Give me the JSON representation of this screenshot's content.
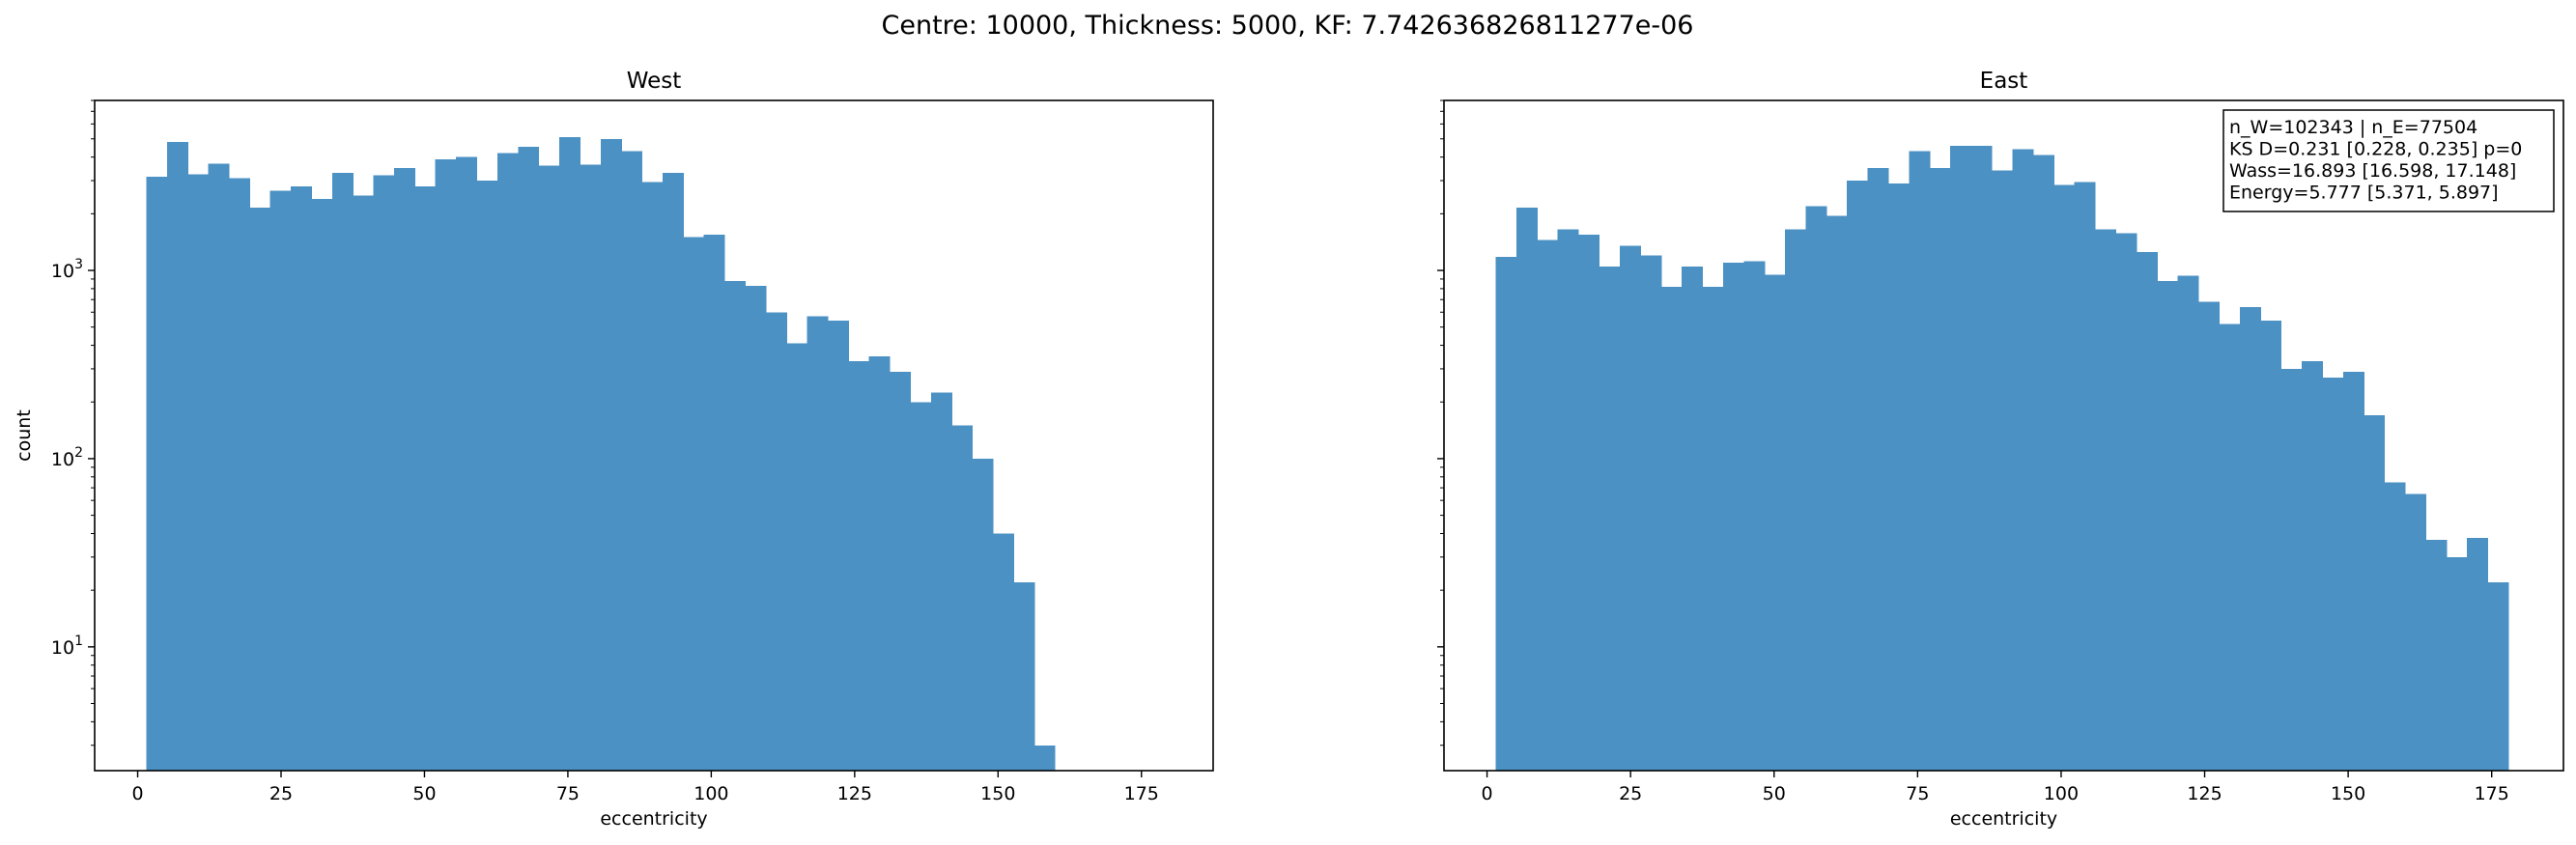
{
  "suptitle": "Centre: 10000, Thickness: 5000, KF: 7.742636826811277e-06",
  "chart_data": [
    {
      "type": "bar",
      "title": "West",
      "xlabel": "eccentricity",
      "ylabel": "count",
      "yscale": "log",
      "xlim": [
        -7.5,
        187.5
      ],
      "ylim": [
        2.2,
        8000
      ],
      "xticks": [
        0,
        25,
        50,
        75,
        100,
        125,
        150,
        175
      ],
      "yticks": [
        {
          "value": 10,
          "base": "10",
          "exp": "1"
        },
        {
          "value": 100,
          "base": "10",
          "exp": "2"
        },
        {
          "value": 1000,
          "base": "10",
          "exp": "3"
        }
      ],
      "bin_start": 1.5,
      "bin_width": 3.6,
      "color": "#4c91c3",
      "values": [
        3150,
        4800,
        3250,
        3700,
        3100,
        2150,
        2650,
        2800,
        2400,
        3300,
        2500,
        3200,
        3500,
        2800,
        3900,
        4000,
        3000,
        4200,
        4550,
        3600,
        5100,
        3650,
        5000,
        4300,
        2950,
        3300,
        1500,
        1550,
        880,
        830,
        600,
        410,
        570,
        540,
        330,
        350,
        290,
        200,
        225,
        150,
        100,
        40,
        22,
        3
      ]
    },
    {
      "type": "bar",
      "title": "East",
      "xlabel": "eccentricity",
      "ylabel": "",
      "yscale": "log",
      "xlim": [
        -7.5,
        187.5
      ],
      "ylim": [
        2.2,
        8000
      ],
      "xticks": [
        0,
        25,
        50,
        75,
        100,
        125,
        150,
        175
      ],
      "bin_start": 1.5,
      "bin_width": 3.6,
      "color": "#4c91c3",
      "values": [
        1180,
        2150,
        1450,
        1650,
        1550,
        1050,
        1350,
        1200,
        820,
        1050,
        820,
        1100,
        1120,
        950,
        1650,
        2200,
        1950,
        3000,
        3500,
        2900,
        4300,
        3500,
        4600,
        4600,
        3400,
        4400,
        4100,
        2850,
        2950,
        1650,
        1580,
        1250,
        880,
        940,
        680,
        520,
        640,
        540,
        300,
        330,
        270,
        290,
        170,
        75,
        65,
        37,
        30,
        38,
        22
      ],
      "annotation": [
        "n_W=102343 | n_E=77504",
        "KS D=0.231 [0.228, 0.235]  p=0",
        "Wass=16.893 [16.598, 17.148]",
        "Energy=5.777 [5.371, 5.897]"
      ]
    }
  ]
}
